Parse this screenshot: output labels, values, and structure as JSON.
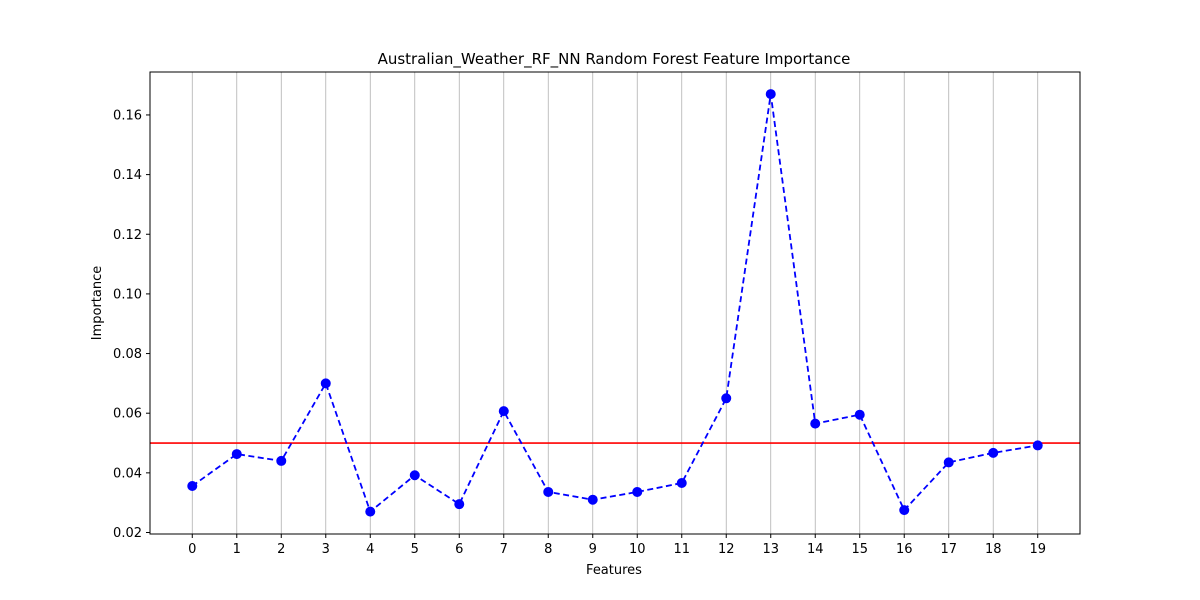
{
  "chart_data": {
    "type": "line",
    "title": "Australian_Weather_RF_NN Random Forest Feature Importance",
    "xlabel": "Features",
    "ylabel": "Importance",
    "x": [
      0,
      1,
      2,
      3,
      4,
      5,
      6,
      7,
      8,
      9,
      10,
      11,
      12,
      13,
      14,
      15,
      16,
      17,
      18,
      19
    ],
    "x_tick_labels": [
      "0",
      "1",
      "2",
      "3",
      "4",
      "5",
      "6",
      "7",
      "8",
      "9",
      "10",
      "11",
      "12",
      "13",
      "14",
      "15",
      "16",
      "17",
      "18",
      "19"
    ],
    "series": [
      {
        "values": [
          0.0356,
          0.0463,
          0.044,
          0.07,
          0.027,
          0.0392,
          0.0295,
          0.0607,
          0.0336,
          0.031,
          0.0336,
          0.0366,
          0.065,
          0.167,
          0.0565,
          0.0595,
          0.0275,
          0.0435,
          0.0467,
          0.0492
        ],
        "color": "#0000ff",
        "line_style": "dashed",
        "marker": "circle"
      }
    ],
    "reference_line": {
      "y": 0.05,
      "color": "#ff0000"
    },
    "y_ticks": [
      0.02,
      0.04,
      0.06,
      0.08,
      0.1,
      0.12,
      0.14,
      0.16
    ],
    "y_tick_labels": [
      "0.02",
      "0.04",
      "0.06",
      "0.08",
      "0.10",
      "0.12",
      "0.14",
      "0.16"
    ],
    "xlim": [
      -0.95,
      19.95
    ],
    "ylim": [
      0.0195,
      0.1744
    ],
    "grid": "x-axis only",
    "legend": "none"
  }
}
